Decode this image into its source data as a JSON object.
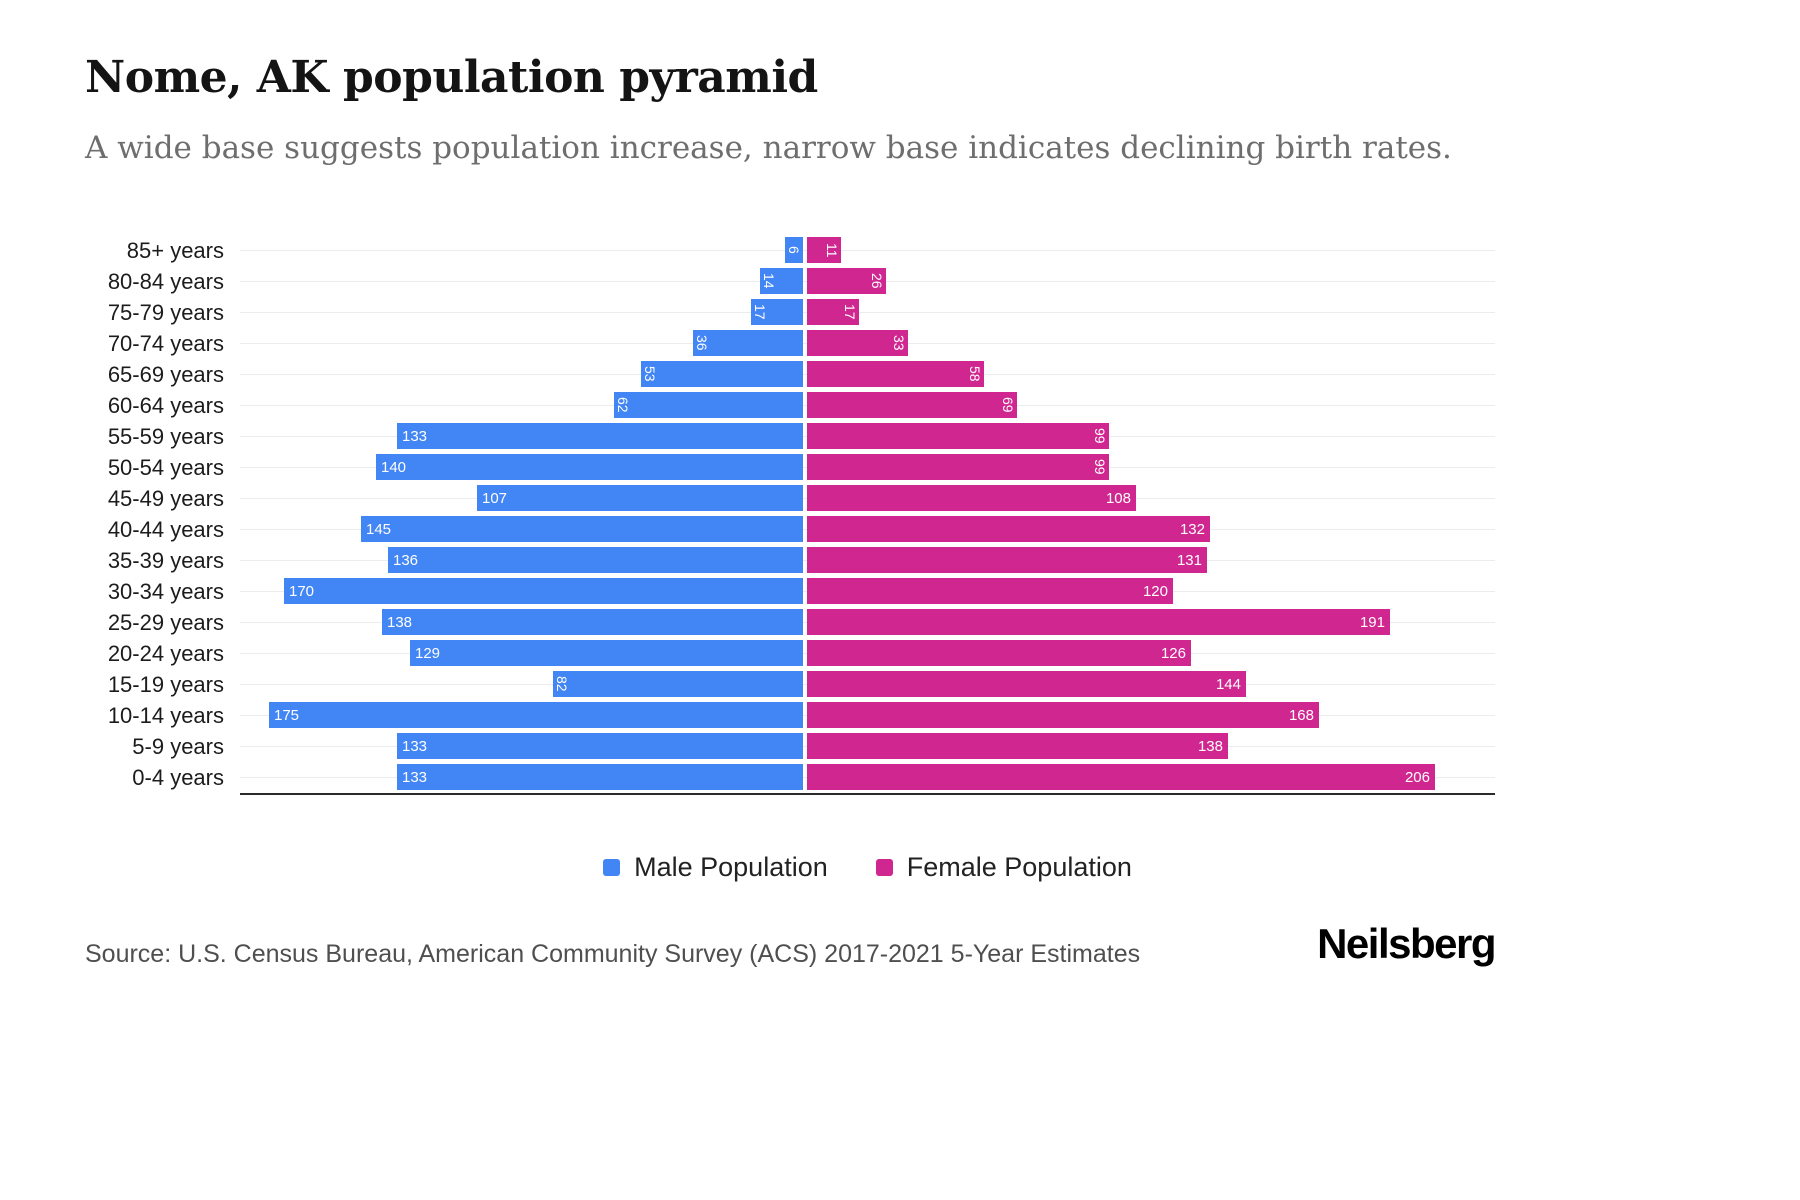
{
  "header": {
    "title": "Nome, AK population pyramid",
    "subtitle": "A wide base suggests population increase, narrow base indicates declining birth rates."
  },
  "chart_data": {
    "type": "bar",
    "variant": "population_pyramid",
    "title": "Nome, AK population pyramid",
    "categories": [
      "85+ years",
      "80-84 years",
      "75-79 years",
      "70-74 years",
      "65-69 years",
      "60-64 years",
      "55-59 years",
      "50-54 years",
      "45-49 years",
      "40-44 years",
      "35-39 years",
      "30-34 years",
      "25-29 years",
      "20-24 years",
      "15-19 years",
      "10-14 years",
      "5-9 years",
      "0-4 years"
    ],
    "series": [
      {
        "name": "Male Population",
        "side": "left",
        "color": "#4285f4",
        "values": [
          6,
          14,
          17,
          36,
          53,
          62,
          133,
          140,
          107,
          145,
          136,
          170,
          138,
          129,
          82,
          175,
          133,
          133
        ]
      },
      {
        "name": "Female Population",
        "side": "right",
        "color": "#d02690",
        "values": [
          11,
          26,
          17,
          33,
          58,
          69,
          99,
          99,
          108,
          132,
          131,
          120,
          191,
          126,
          144,
          168,
          138,
          206
        ]
      }
    ],
    "value_label_color": "#ffffff",
    "axis": {
      "x_max": 206
    },
    "grid": true,
    "legend_position": "bottom"
  },
  "footer": {
    "source": "Source: U.S. Census Bureau, American Community Survey (ACS) 2017-2021 5-Year Estimates",
    "logo": "Neilsberg"
  }
}
